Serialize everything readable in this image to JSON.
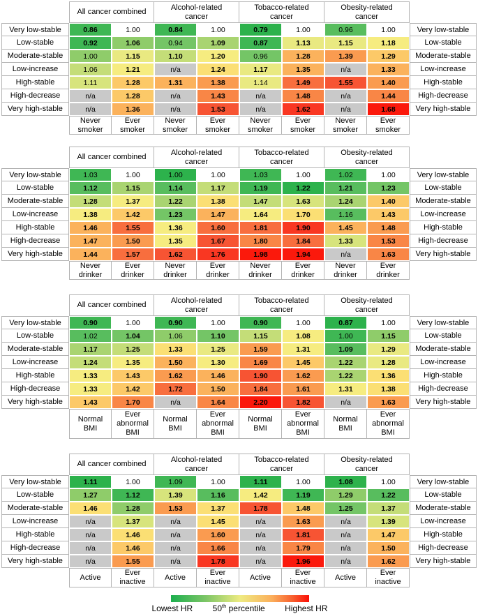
{
  "palette": {
    "W": "#ffffff",
    "NA": "#c9c9c9",
    "G1": "#2db24c",
    "G2": "#3fb754",
    "G3": "#58bd5e",
    "G4": "#74c566",
    "G5": "#8fcc6a",
    "G6": "#a9d471",
    "YG1": "#c4dd78",
    "YG2": "#d7e47c",
    "PY": "#e9e981",
    "Y1": "#f6ec80",
    "Y2": "#fbdf74",
    "YO": "#fcc968",
    "O1": "#fbb25c",
    "O2": "#fa9b50",
    "O3": "#f98646",
    "O4": "#f86e3e",
    "R1": "#f75433",
    "R2": "#f93722",
    "R3": "#fb190c"
  },
  "row_labels": [
    "Very low-stable",
    "Low-stable",
    "Moderate-stable",
    "Low-increase",
    "High-stable",
    "High-decrease",
    "Very high-stable"
  ],
  "cancer_groups": [
    "All cancer combined",
    "Alcohol-related cancer",
    "Tobacco-related cancer",
    "Obesity-related cancer"
  ],
  "chart_data": [
    {
      "type": "heatmap",
      "id": "smoking",
      "col_pair": [
        "Never smoker",
        "Ever smoker"
      ],
      "cells": [
        [
          "0.86|1|G2",
          "1.00|0|W",
          "0.84|1|G2",
          "1.00|0|W",
          "0.79|1|G1",
          "1.00|0|W",
          "0.96|0|G3",
          "1.00|0|W"
        ],
        [
          "0.92|1|G2",
          "1.06|1|G5",
          "0.94|0|G4",
          "1.09|1|G6",
          "0.87|1|G2",
          "1.13|1|PY",
          "1.15|1|PY",
          "1.18|1|Y1"
        ],
        [
          "1.00|0|G5",
          "1.15|1|PY",
          "1.10|1|YG1",
          "1.20|1|Y1",
          "0.96|0|G4",
          "1.28|1|O1",
          "1.39|1|O2",
          "1.29|1|YO"
        ],
        [
          "1.06|0|YG1",
          "1.21|1|Y1",
          "n/a|0|NA",
          "1.24|1|Y2",
          "1.17|1|PY",
          "1.35|1|O1",
          "n/a|0|NA",
          "1.33|1|O1"
        ],
        [
          "1.11|0|YG2",
          "1.28|1|YO",
          "1.31|1|O1",
          "1.38|1|O2",
          "1.14|0|PY",
          "1.49|1|O4",
          "1.55|1|R1",
          "1.40|1|O2"
        ],
        [
          "n/a|0|NA",
          "1.28|1|YO",
          "n/a|0|NA",
          "1.43|1|O3",
          "n/a|0|NA",
          "1.48|1|O3",
          "n/a|0|NA",
          "1.44|1|O3"
        ],
        [
          "n/a|0|NA",
          "1.36|1|O1",
          "n/a|0|NA",
          "1.53|1|R1",
          "n/a|0|NA",
          "1.62|1|R2",
          "n/a|0|NA",
          "1.68|1|R3"
        ]
      ]
    },
    {
      "type": "heatmap",
      "id": "drinking",
      "col_pair": [
        "Never drinker",
        "Ever drinker"
      ],
      "cells": [
        [
          "1.03|0|G2",
          "1.00|0|W",
          "1.00|0|G1",
          "1.00|0|W",
          "1.03|0|G2",
          "1.00|0|W",
          "1.02|0|G2",
          "1.00|0|W"
        ],
        [
          "1.12|1|G3",
          "1.15|1|G6",
          "1.14|1|G3",
          "1.17|1|YG1",
          "1.19|1|G2",
          "1.22|1|G1",
          "1.21|1|G3",
          "1.23|1|G4"
        ],
        [
          "1.28|1|YG1",
          "1.37|1|Y1",
          "1.22|1|G6",
          "1.38|1|Y2",
          "1.47|1|YG1",
          "1.63|1|YG2",
          "1.24|1|G6",
          "1.40|1|YO"
        ],
        [
          "1.38|1|Y1",
          "1.42|1|YO",
          "1.23|1|G4",
          "1.47|1|O1",
          "1.64|1|Y1",
          "1.70|1|Y2",
          "1.16|0|G3",
          "1.43|1|YO"
        ],
        [
          "1.46|1|O1",
          "1.55|1|O4",
          "1.36|1|Y1",
          "1.60|1|O4",
          "1.81|1|O4",
          "1.90|1|R2",
          "1.45|1|O1",
          "1.48|1|O2"
        ],
        [
          "1.47|1|O1",
          "1.50|1|O2",
          "1.35|1|Y1",
          "1.67|1|R1",
          "1.80|1|O3",
          "1.84|1|O4",
          "1.33|1|YG2",
          "1.53|1|O3"
        ],
        [
          "1.44|1|O1",
          "1.57|1|O4",
          "1.62|1|R1",
          "1.76|1|R2",
          "1.98|1|R3",
          "1.94|1|R3",
          "n/a|0|NA",
          "1.63|1|O3"
        ]
      ]
    },
    {
      "type": "heatmap",
      "id": "bmi",
      "col_pair": [
        "Normal BMI",
        "Ever abnormal BMI"
      ],
      "cells": [
        [
          "0.90|1|G2",
          "1.00|0|W",
          "0.90|1|G2",
          "1.00|0|W",
          "0.90|1|G2",
          "1.00|0|W",
          "0.87|1|G1",
          "1.00|0|W"
        ],
        [
          "1.02|0|G3",
          "1.04|1|G4",
          "1.06|0|G5",
          "1.10|1|G4",
          "1.15|1|YG1",
          "1.08|1|Y1",
          "1.00|0|G2",
          "1.15|1|G5"
        ],
        [
          "1.17|1|G6",
          "1.25|1|YG1",
          "1.33|1|Y2",
          "1.25|1|PY",
          "1.59|1|O2",
          "1.31|1|Y1",
          "1.09|1|G3",
          "1.29|1|PY"
        ],
        [
          "1.24|1|YG1",
          "1.35|1|Y1",
          "1.50|1|O1",
          "1.30|1|Y1",
          "1.69|1|O3",
          "1.45|1|YO",
          "1.22|1|G6",
          "1.28|1|PY"
        ],
        [
          "1.33|1|Y1",
          "1.43|1|YO",
          "1.62|1|O2",
          "1.46|1|O1",
          "1.90|1|R1",
          "1.62|1|O2",
          "1.22|1|G6",
          "1.36|1|Y2"
        ],
        [
          "1.33|1|Y1",
          "1.42|1|YO",
          "1.72|1|O4",
          "1.50|1|O1",
          "1.84|1|O4",
          "1.61|1|O2",
          "1.31|1|Y1",
          "1.38|1|Y2"
        ],
        [
          "1.43|1|YO",
          "1.70|1|O3",
          "n/a|0|NA",
          "1.64|1|O3",
          "2.20|1|R3",
          "1.82|1|R1",
          "n/a|0|NA",
          "1.63|1|O2"
        ]
      ]
    },
    {
      "type": "heatmap",
      "id": "physical-activity",
      "col_pair": [
        "Active",
        "Ever inactive"
      ],
      "cells": [
        [
          "1.11|1|G1",
          "1.00|0|W",
          "1.09|0|G2",
          "1.00|0|W",
          "1.11|1|G1",
          "1.00|0|W",
          "1.08|1|G1",
          "1.00|0|W"
        ],
        [
          "1.27|1|G5",
          "1.12|1|G2",
          "1.39|1|YG2",
          "1.16|1|G3",
          "1.42|1|Y1",
          "1.19|1|G2",
          "1.29|1|G5",
          "1.22|1|G3"
        ],
        [
          "1.46|1|Y2",
          "1.28|1|G5",
          "1.53|1|O2",
          "1.37|1|Y2",
          "1.78|1|R1",
          "1.48|1|YO",
          "1.25|1|G4",
          "1.37|1|YG1"
        ],
        [
          "n/a|0|NA",
          "1.37|1|YG2",
          "n/a|0|NA",
          "1.45|1|Y2",
          "n/a|0|NA",
          "1.63|1|O2",
          "n/a|0|NA",
          "1.39|1|YG2"
        ],
        [
          "n/a|0|NA",
          "1.46|1|Y2",
          "n/a|0|NA",
          "1.60|1|O2",
          "n/a|0|NA",
          "1.81|1|R1",
          "n/a|0|NA",
          "1.47|1|YO"
        ],
        [
          "n/a|0|NA",
          "1.46|1|YO",
          "n/a|0|NA",
          "1.66|1|O3",
          "n/a|0|NA",
          "1.79|1|O3",
          "n/a|0|NA",
          "1.50|1|O1"
        ],
        [
          "n/a|0|NA",
          "1.55|1|O2",
          "n/a|0|NA",
          "1.78|1|R2",
          "n/a|0|NA",
          "1.96|1|R3",
          "n/a|0|NA",
          "1.62|1|O2"
        ]
      ]
    }
  ],
  "legend": {
    "lowest": "Lowest HR",
    "mid_num": "50",
    "mid_sup": "th",
    "mid_rest": " percentile",
    "highest": "Highest HR",
    "gradient": [
      "#1caf4e",
      "#eeeb81",
      "#fb0f07"
    ]
  }
}
